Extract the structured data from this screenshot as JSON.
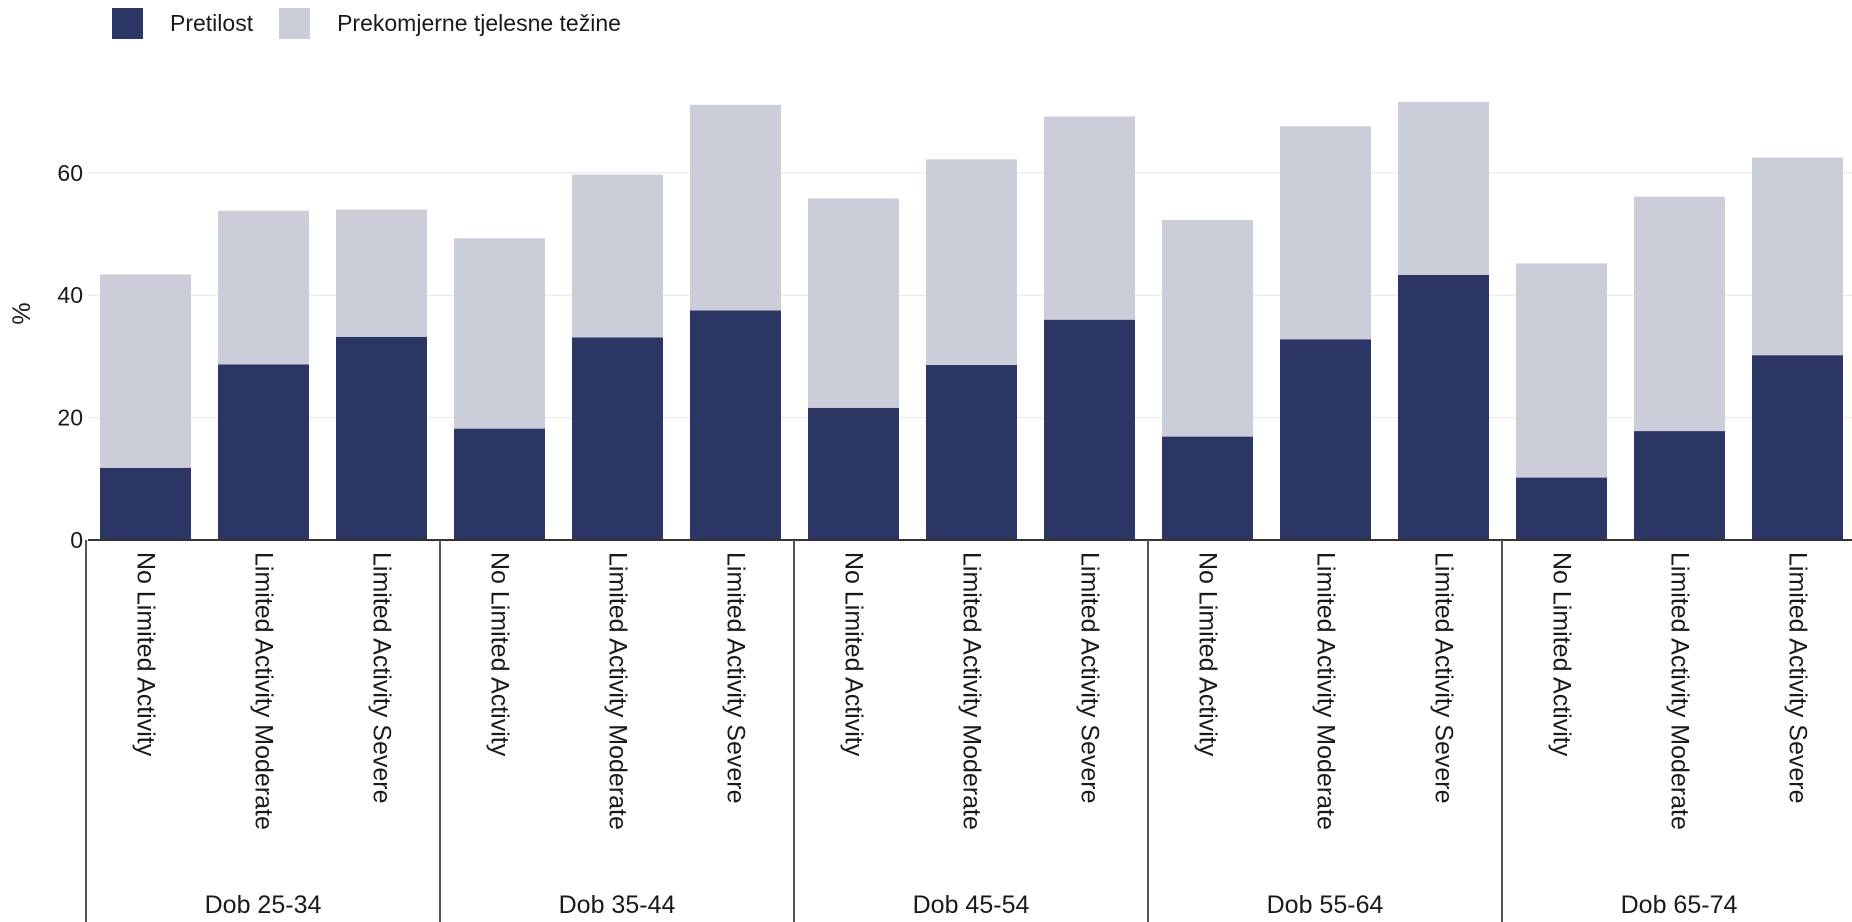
{
  "chart_data": {
    "type": "bar",
    "stacked": true,
    "ylabel": "%",
    "ylim": [
      0,
      75
    ],
    "yticks": [
      0,
      20,
      40,
      60
    ],
    "grid": true,
    "legend_position": "top-left",
    "groups": [
      "Dob 25-34",
      "Dob 35-44",
      "Dob 45-54",
      "Dob 55-64",
      "Dob 65-74"
    ],
    "subcategories": [
      "No Limited Activity",
      "Limited Activity Moderate",
      "Limited Activity Severe"
    ],
    "series": [
      {
        "name": "Pretilost",
        "color": "#2b3664",
        "values": [
          11.8,
          28.7,
          33.2,
          18.2,
          33.1,
          37.5,
          21.6,
          28.6,
          36.0,
          16.9,
          32.8,
          43.3,
          10.2,
          17.8,
          30.2
        ]
      },
      {
        "name": "Prekomjerne tjelesne težine",
        "color": "#cbcdd9",
        "values": [
          31.6,
          25.1,
          20.8,
          31.1,
          26.6,
          33.6,
          34.2,
          33.6,
          33.2,
          35.4,
          34.8,
          28.3,
          35.0,
          38.3,
          32.3
        ]
      }
    ]
  }
}
